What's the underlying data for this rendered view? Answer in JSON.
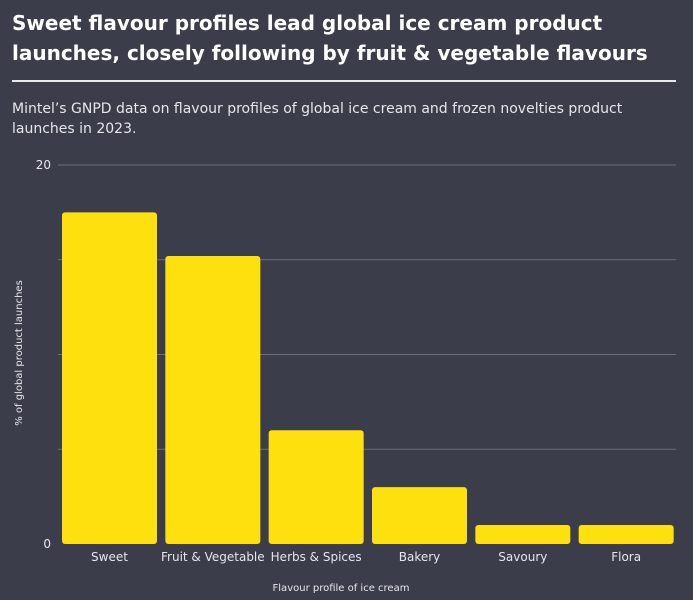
{
  "header": {
    "title": "Sweet flavour profiles lead global ice cream product launches, closely following by fruit & vegetable flavours",
    "subtitle": "Mintel’s GNPD data on flavour profiles of global ice cream and frozen novelties product launches in 2023."
  },
  "colors": {
    "background": "#3b3d4b",
    "bar": "#fde00e",
    "grid": "#6b6d7b"
  },
  "chart_data": {
    "type": "bar",
    "categories": [
      "Sweet",
      "Fruit & Vegetable",
      "Herbs & Spices",
      "Bakery",
      "Savoury",
      "Flora"
    ],
    "values": [
      17.5,
      15.2,
      6.0,
      3.0,
      1.0,
      1.0
    ],
    "xlabel": "Flavour profile of ice cream",
    "ylabel": "% of global product launches",
    "ylim": [
      0,
      20
    ],
    "yticks_labeled": [
      0,
      20
    ],
    "gridlines": [
      5,
      10,
      15,
      20
    ],
    "grid": true,
    "legend": "none"
  }
}
